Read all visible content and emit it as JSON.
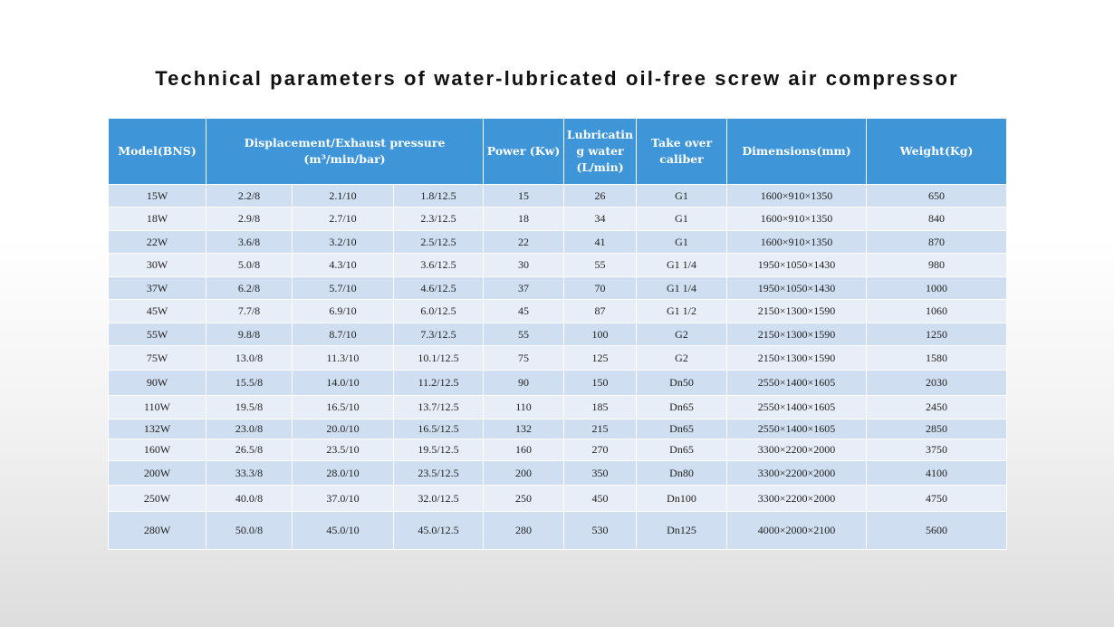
{
  "title": "Technical parameters of water-lubricated oil-free screw air compressor",
  "colors": {
    "header_bg": "#3e95d8",
    "row_dark": "#cfdef0",
    "row_light": "#e8eef8",
    "header_text": "#ffffff"
  },
  "headers": {
    "model": "Model(BNS)",
    "displacement_line1": "Displacement/Exhaust pressure",
    "displacement_line2": "(m³/min/bar)",
    "power": "Power (Kw)",
    "lubricating": "Lubricating water (L/min)",
    "take_over": "Take over caliber",
    "dimensions": "Dimensions(mm)",
    "weight": "Weight(Kg)"
  },
  "rows": [
    {
      "model": "15W",
      "d1": "2.2/8",
      "d2": "2.1/10",
      "d3": "1.8/12.5",
      "power": "15",
      "water": "26",
      "caliber": "G1",
      "dims": "1600×910×1350",
      "weight": "650"
    },
    {
      "model": "18W",
      "d1": "2.9/8",
      "d2": "2.7/10",
      "d3": "2.3/12.5",
      "power": "18",
      "water": "34",
      "caliber": "G1",
      "dims": "1600×910×1350",
      "weight": "840"
    },
    {
      "model": "22W",
      "d1": "3.6/8",
      "d2": "3.2/10",
      "d3": "2.5/12.5",
      "power": "22",
      "water": "41",
      "caliber": "G1",
      "dims": "1600×910×1350",
      "weight": "870"
    },
    {
      "model": "30W",
      "d1": "5.0/8",
      "d2": "4.3/10",
      "d3": "3.6/12.5",
      "power": "30",
      "water": "55",
      "caliber": "G1 1/4",
      "dims": "1950×1050×1430",
      "weight": "980"
    },
    {
      "model": "37W",
      "d1": "6.2/8",
      "d2": "5.7/10",
      "d3": "4.6/12.5",
      "power": "37",
      "water": "70",
      "caliber": "G1 1/4",
      "dims": "1950×1050×1430",
      "weight": "1000"
    },
    {
      "model": "45W",
      "d1": "7.7/8",
      "d2": "6.9/10",
      "d3": "6.0/12.5",
      "power": "45",
      "water": "87",
      "caliber": "G1 1/2",
      "dims": "2150×1300×1590",
      "weight": "1060"
    },
    {
      "model": "55W",
      "d1": "9.8/8",
      "d2": "8.7/10",
      "d3": "7.3/12.5",
      "power": "55",
      "water": "100",
      "caliber": "G2",
      "dims": "2150×1300×1590",
      "weight": "1250"
    },
    {
      "model": "75W",
      "d1": "13.0/8",
      "d2": "11.3/10",
      "d3": "10.1/12.5",
      "power": "75",
      "water": "125",
      "caliber": "G2",
      "dims": "2150×1300×1590",
      "weight": "1580"
    },
    {
      "model": "90W",
      "d1": "15.5/8",
      "d2": "14.0/10",
      "d3": "11.2/12.5",
      "power": "90",
      "water": "150",
      "caliber": "Dn50",
      "dims": "2550×1400×1605",
      "weight": "2030"
    },
    {
      "model": "110W",
      "d1": "19.5/8",
      "d2": "16.5/10",
      "d3": "13.7/12.5",
      "power": "110",
      "water": "185",
      "caliber": "Dn65",
      "dims": "2550×1400×1605",
      "weight": "2450"
    },
    {
      "model": "132W",
      "d1": "23.0/8",
      "d2": "20.0/10",
      "d3": "16.5/12.5",
      "power": "132",
      "water": "215",
      "caliber": "Dn65",
      "dims": "2550×1400×1605",
      "weight": "2850"
    },
    {
      "model": "160W",
      "d1": "26.5/8",
      "d2": "23.5/10",
      "d3": "19.5/12.5",
      "power": "160",
      "water": "270",
      "caliber": "Dn65",
      "dims": "3300×2200×2000",
      "weight": "3750"
    },
    {
      "model": "200W",
      "d1": "33.3/8",
      "d2": "28.0/10",
      "d3": "23.5/12.5",
      "power": "200",
      "water": "350",
      "caliber": "Dn80",
      "dims": "3300×2200×2000",
      "weight": "4100"
    },
    {
      "model": "250W",
      "d1": "40.0/8",
      "d2": "37.0/10",
      "d3": "32.0/12.5",
      "power": "250",
      "water": "450",
      "caliber": "Dn100",
      "dims": "3300×2200×2000",
      "weight": "4750"
    },
    {
      "model": "280W",
      "d1": "50.0/8",
      "d2": "45.0/10",
      "d3": "45.0/12.5",
      "power": "280",
      "water": "530",
      "caliber": "Dn125",
      "dims": "4000×2000×2100",
      "weight": "5600"
    }
  ]
}
